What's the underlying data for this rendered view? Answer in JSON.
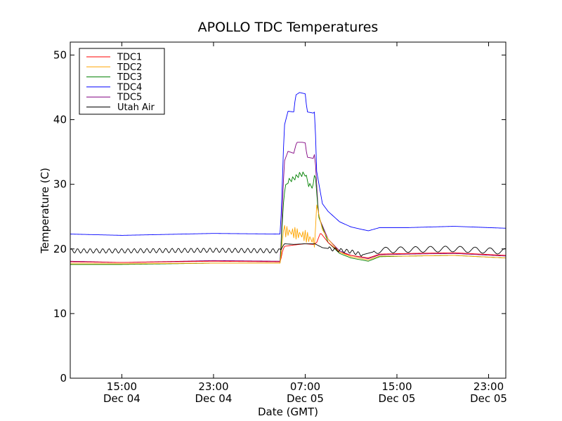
{
  "chart_data": {
    "type": "line",
    "title": "APOLLO TDC Temperatures",
    "xlabel": "Date (GMT)",
    "ylabel": "Temperature (C)",
    "x_unit": "hours GMT",
    "xlim": [
      "Dec 04 10:30",
      "Dec 06 00:30"
    ],
    "ylim": [
      0,
      52
    ],
    "yticks": [
      0,
      10,
      20,
      30,
      40,
      50
    ],
    "xticks": [
      {
        "time": "Dec 04 15:00",
        "line1": "15:00",
        "line2": "Dec 04"
      },
      {
        "time": "Dec 04 23:00",
        "line1": "23:00",
        "line2": "Dec 04"
      },
      {
        "time": "Dec 05 07:00",
        "line1": "07:00",
        "line2": "Dec 05"
      },
      {
        "time": "Dec 05 15:00",
        "line1": "15:00",
        "line2": "Dec 05"
      },
      {
        "time": "Dec 05 23:00",
        "line1": "23:00",
        "line2": "Dec 05"
      }
    ],
    "legend_position": "top-left",
    "grid": false,
    "series": [
      {
        "name": "TDC1",
        "color": "#ff0000",
        "points": [
          [
            "Dec 04 10:30",
            18.0
          ],
          [
            "Dec 04 15:00",
            17.9
          ],
          [
            "Dec 04 23:00",
            18.1
          ],
          [
            "Dec 05 04:50",
            18.0
          ],
          [
            "Dec 05 05:00",
            19.5
          ],
          [
            "Dec 05 05:10",
            20.4
          ],
          [
            "Dec 05 06:00",
            20.6
          ],
          [
            "Dec 05 07:00",
            20.8
          ],
          [
            "Dec 05 07:45",
            20.7
          ],
          [
            "Dec 05 08:00",
            21.0
          ],
          [
            "Dec 05 08:20",
            22.5
          ],
          [
            "Dec 05 09:00",
            21.0
          ],
          [
            "Dec 05 10:00",
            19.5
          ],
          [
            "Dec 05 11:00",
            19.0
          ],
          [
            "Dec 05 12:30",
            18.6
          ],
          [
            "Dec 05 13:30",
            19.2
          ],
          [
            "Dec 05 16:00",
            19.3
          ],
          [
            "Dec 05 20:00",
            19.4
          ],
          [
            "Dec 06 00:30",
            19.0
          ]
        ]
      },
      {
        "name": "TDC2",
        "color": "#ffa500",
        "points": [
          [
            "Dec 04 10:30",
            17.7
          ],
          [
            "Dec 04 15:00",
            17.7
          ],
          [
            "Dec 04 23:00",
            17.8
          ],
          [
            "Dec 05 04:50",
            17.8
          ],
          [
            "Dec 05 05:05",
            22.8
          ],
          [
            "Dec 05 06:00",
            22.5
          ],
          [
            "Dec 05 07:00",
            22.0
          ],
          [
            "Dec 05 07:30",
            21.5
          ],
          [
            "Dec 05 07:50",
            21.0
          ],
          [
            "Dec 05 08:00",
            26.8
          ],
          [
            "Dec 05 08:30",
            23.0
          ],
          [
            "Dec 05 09:00",
            21.5
          ],
          [
            "Dec 05 10:00",
            19.5
          ],
          [
            "Dec 05 11:00",
            18.8
          ],
          [
            "Dec 05 12:30",
            18.3
          ],
          [
            "Dec 05 13:30",
            18.9
          ],
          [
            "Dec 05 16:00",
            18.9
          ],
          [
            "Dec 05 20:00",
            19.0
          ],
          [
            "Dec 06 00:30",
            18.6
          ]
        ]
      },
      {
        "name": "TDC3",
        "color": "#008000",
        "points": [
          [
            "Dec 04 10:30",
            17.6
          ],
          [
            "Dec 04 15:00",
            17.6
          ],
          [
            "Dec 04 23:00",
            17.8
          ],
          [
            "Dec 05 04:50",
            17.8
          ],
          [
            "Dec 05 05:00",
            24.0
          ],
          [
            "Dec 05 05:10",
            29.0
          ],
          [
            "Dec 05 05:30",
            30.5
          ],
          [
            "Dec 05 06:00",
            30.9
          ],
          [
            "Dec 05 06:30",
            31.5
          ],
          [
            "Dec 05 07:00",
            31.6
          ],
          [
            "Dec 05 07:20",
            29.8
          ],
          [
            "Dec 05 07:45",
            29.7
          ],
          [
            "Dec 05 07:50",
            32.5
          ],
          [
            "Dec 05 08:10",
            25.0
          ],
          [
            "Dec 05 09:00",
            21.0
          ],
          [
            "Dec 05 10:00",
            19.3
          ],
          [
            "Dec 05 11:00",
            18.6
          ],
          [
            "Dec 05 12:30",
            18.1
          ],
          [
            "Dec 05 13:30",
            18.8
          ],
          [
            "Dec 05 16:00",
            18.9
          ],
          [
            "Dec 05 20:00",
            19.0
          ],
          [
            "Dec 06 00:30",
            18.6
          ]
        ]
      },
      {
        "name": "TDC4",
        "color": "#0000ff",
        "points": [
          [
            "Dec 04 10:30",
            22.3
          ],
          [
            "Dec 04 15:00",
            22.1
          ],
          [
            "Dec 04 23:00",
            22.4
          ],
          [
            "Dec 05 04:50",
            22.3
          ],
          [
            "Dec 05 05:00",
            30.0
          ],
          [
            "Dec 05 05:10",
            39.0
          ],
          [
            "Dec 05 05:30",
            41.3
          ],
          [
            "Dec 05 06:00",
            41.2
          ],
          [
            "Dec 05 06:10",
            43.8
          ],
          [
            "Dec 05 06:30",
            44.2
          ],
          [
            "Dec 05 07:00",
            44.0
          ],
          [
            "Dec 05 07:10",
            41.2
          ],
          [
            "Dec 05 07:45",
            41.0
          ],
          [
            "Dec 05 07:50",
            41.3
          ],
          [
            "Dec 05 08:00",
            32.0
          ],
          [
            "Dec 05 08:30",
            27.0
          ],
          [
            "Dec 05 09:00",
            25.8
          ],
          [
            "Dec 05 10:00",
            24.2
          ],
          [
            "Dec 05 11:00",
            23.4
          ],
          [
            "Dec 05 12:30",
            22.8
          ],
          [
            "Dec 05 13:30",
            23.3
          ],
          [
            "Dec 05 16:00",
            23.3
          ],
          [
            "Dec 05 20:00",
            23.5
          ],
          [
            "Dec 06 00:30",
            23.2
          ]
        ]
      },
      {
        "name": "TDC5",
        "color": "#800080",
        "points": [
          [
            "Dec 04 10:30",
            18.1
          ],
          [
            "Dec 04 15:00",
            17.9
          ],
          [
            "Dec 04 23:00",
            18.2
          ],
          [
            "Dec 05 04:50",
            18.1
          ],
          [
            "Dec 05 05:00",
            26.0
          ],
          [
            "Dec 05 05:10",
            33.5
          ],
          [
            "Dec 05 05:30",
            35.1
          ],
          [
            "Dec 05 06:00",
            34.8
          ],
          [
            "Dec 05 06:15",
            36.5
          ],
          [
            "Dec 05 06:45",
            36.5
          ],
          [
            "Dec 05 07:00",
            36.4
          ],
          [
            "Dec 05 07:10",
            34.2
          ],
          [
            "Dec 05 07:45",
            34.0
          ],
          [
            "Dec 05 07:50",
            35.0
          ],
          [
            "Dec 05 08:10",
            25.0
          ],
          [
            "Dec 05 09:00",
            21.5
          ],
          [
            "Dec 05 10:00",
            19.7
          ],
          [
            "Dec 05 11:00",
            19.0
          ],
          [
            "Dec 05 12:30",
            18.5
          ],
          [
            "Dec 05 13:30",
            19.1
          ],
          [
            "Dec 05 16:00",
            19.2
          ],
          [
            "Dec 05 20:00",
            19.3
          ],
          [
            "Dec 06 00:30",
            18.9
          ]
        ]
      },
      {
        "name": "Utah Air",
        "color": "#000000",
        "points": [
          [
            "Dec 04 10:30",
            19.7
          ],
          [
            "Dec 04 15:00",
            19.7
          ],
          [
            "Dec 04 23:00",
            19.8
          ],
          [
            "Dec 05 04:50",
            19.7
          ],
          [
            "Dec 05 05:10",
            20.8
          ],
          [
            "Dec 05 06:00",
            20.7
          ],
          [
            "Dec 05 07:00",
            20.8
          ],
          [
            "Dec 05 07:50",
            20.8
          ],
          [
            "Dec 05 08:30",
            20.2
          ],
          [
            "Dec 05 10:00",
            19.8
          ],
          [
            "Dec 05 11:00",
            19.6
          ],
          [
            "Dec 05 12:00",
            19.1
          ],
          [
            "Dec 05 13:30",
            19.8
          ],
          [
            "Dec 05 16:00",
            19.9
          ],
          [
            "Dec 05 20:00",
            20.0
          ],
          [
            "Dec 06 00:30",
            19.6
          ]
        ]
      }
    ]
  }
}
